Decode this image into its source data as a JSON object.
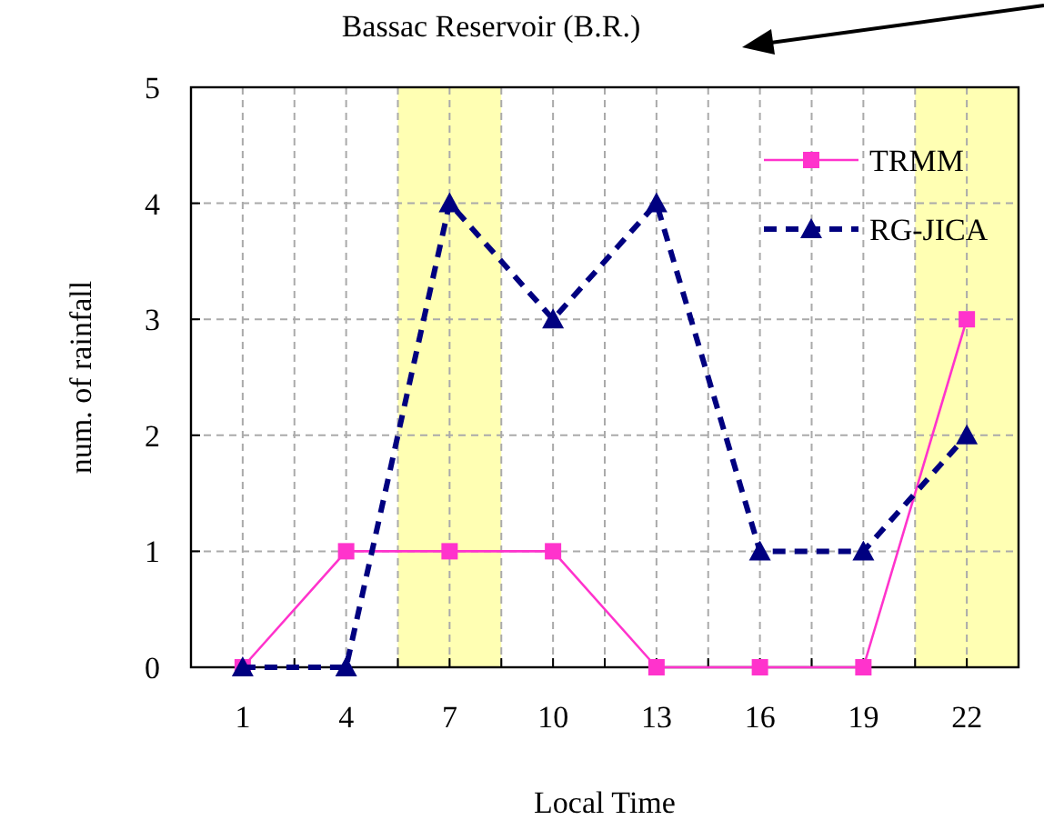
{
  "chart_data": {
    "type": "line",
    "xlabel": "Local Time",
    "ylabel": "num. of rainfall",
    "annotations": [
      "Bassac Reservoir (B.R.)"
    ],
    "x": [
      1,
      4,
      7,
      10,
      13,
      16,
      19,
      22
    ],
    "xlim": [
      -0.5,
      23.5
    ],
    "xticks": [
      1,
      {
        "value": 2.5,
        "label": null
      },
      4,
      {
        "value": 5.5,
        "label": null
      },
      7,
      {
        "value": 8.5,
        "label": null
      },
      10,
      {
        "value": 11.5,
        "label": null
      },
      13,
      {
        "value": 14.5,
        "label": null
      },
      16,
      {
        "value": 17.5,
        "label": null
      },
      19,
      {
        "value": 20.5,
        "label": null
      },
      22
    ],
    "ylim": [
      0,
      5
    ],
    "yticks": [
      0,
      1,
      2,
      3,
      4,
      5
    ],
    "grid": true,
    "legend": "top right",
    "bands": [
      {
        "axis": "x",
        "from": 5.5,
        "to": 8.5,
        "color": "#ffffb3"
      },
      {
        "axis": "x",
        "from": 20.5,
        "to": 23.5,
        "color": "#ffffb3"
      }
    ],
    "series": [
      {
        "name": "TRMM",
        "color": "#ff33cc",
        "marker": "square",
        "line_style": "solid",
        "values": [
          0,
          1,
          1,
          1,
          0,
          0,
          0,
          3
        ]
      },
      {
        "name": "RG-JICA",
        "color": "#000080",
        "marker": "triangle",
        "line_style": "dashed",
        "values": [
          0,
          0,
          4,
          3,
          4,
          1,
          1,
          2
        ]
      }
    ]
  }
}
